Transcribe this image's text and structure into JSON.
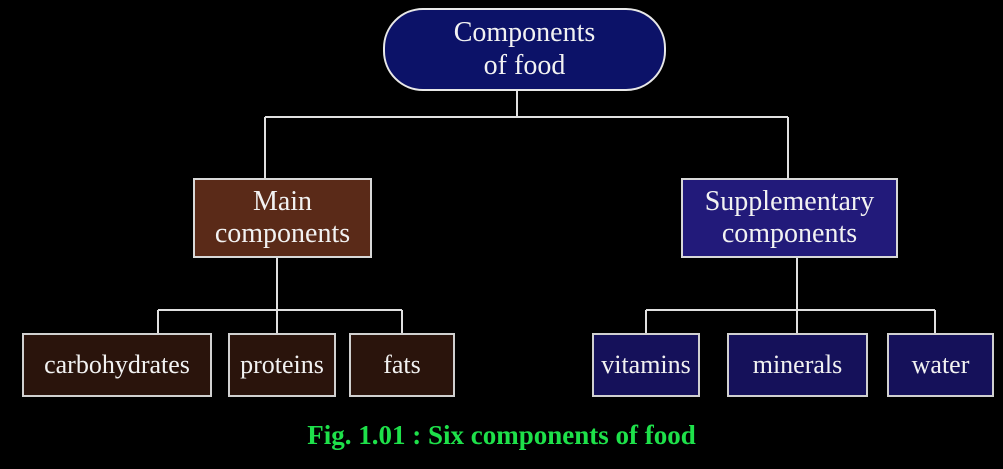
{
  "diagram": {
    "root": {
      "label": "Components\nof food"
    },
    "branches": [
      {
        "label": "Main\ncomponents",
        "leaves": [
          "carbohydrates",
          "proteins",
          "fats"
        ]
      },
      {
        "label": "Supplementary\ncomponents",
        "leaves": [
          "vitamins",
          "minerals",
          "water"
        ]
      }
    ],
    "caption": "Fig. 1.01 : Six components of food"
  },
  "colors": {
    "background": "#000000",
    "root_fill": "#0c1268",
    "main_fill": "#5a2a18",
    "main_leaf_fill": "#2a140c",
    "supp_fill": "#221a7a",
    "supp_leaf_fill": "#15115a",
    "connector": "#e0e0e0",
    "caption": "#1ee14a"
  }
}
